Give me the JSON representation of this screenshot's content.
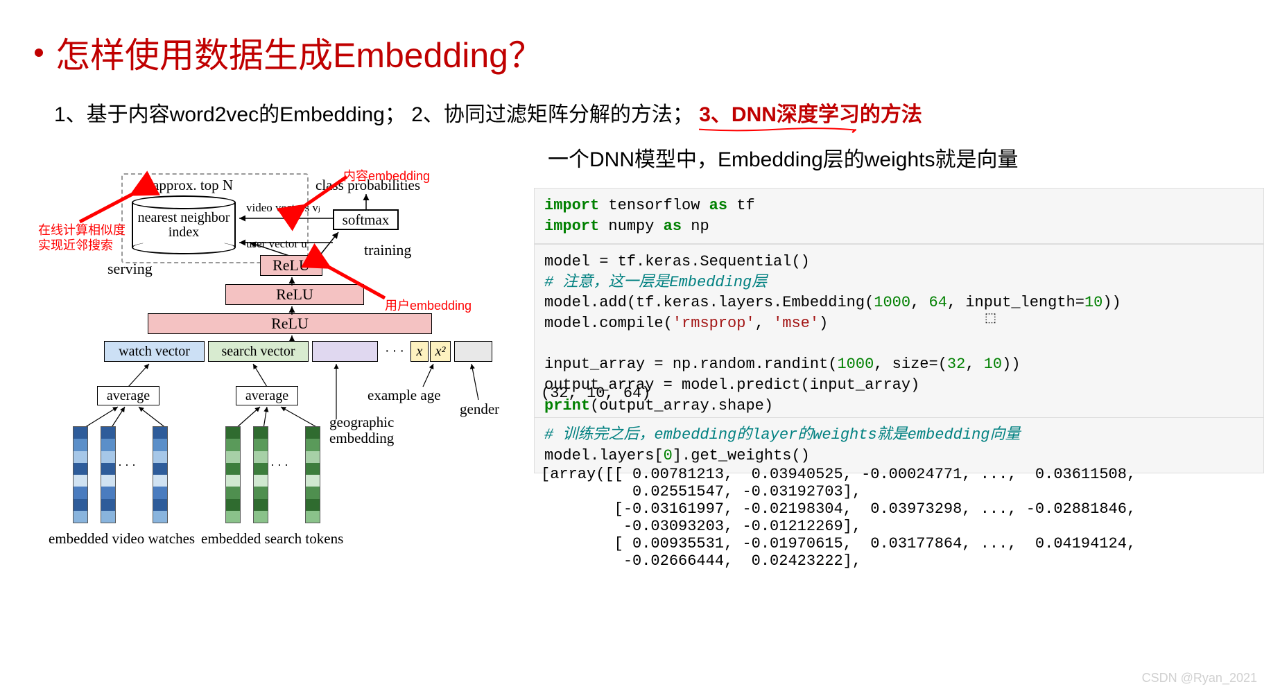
{
  "title": "怎样使用数据生成Embedding？",
  "subtitle_parts": {
    "p1": "1、基于内容word2vec的Embedding；",
    "p2": "2、协同过滤矩阵分解的方法；",
    "p3": "3、DNN深度学习的方法"
  },
  "dnn_caption": "一个DNN模型中，Embedding层的weights就是向量",
  "diagram": {
    "approx_top_n": "approx. top N",
    "nearest_neighbor": "nearest neighbor",
    "index": "index",
    "serving": "serving",
    "video_vectors": "video vectors vⱼ",
    "user_vector": "user vector u",
    "softmax": "softmax",
    "class_prob": "class probabilities",
    "training": "training",
    "relu": "ReLU",
    "watch_vector": "watch vector",
    "search_vector": "search vector",
    "x": "x",
    "x2": "x²",
    "ellipsis": "···",
    "average": "average",
    "example_age": "example age",
    "gender": "gender",
    "geographic": "geographic",
    "embedding": "embedding",
    "embedded_video": "embedded video watches",
    "embedded_search": "embedded search tokens",
    "annot_content": "内容embedding",
    "annot_user": "用户embedding",
    "annot_nn": "在线计算相似度\n实现近邻搜索",
    "blue_shades": [
      "#2e5c9a",
      "#5b8fc9",
      "#a6c7e8",
      "#2e5c9a",
      "#d0e2f2",
      "#4a7cbf",
      "#2e5c9a",
      "#89b4dd"
    ],
    "green_shades": [
      "#2f6b2f",
      "#5a9a5a",
      "#a7d0a7",
      "#3c7d3c",
      "#d0e8d0",
      "#4f8f4f",
      "#2f6b2f",
      "#8ac28a"
    ]
  },
  "code": {
    "block1_l1a": "import",
    "block1_l1b": " tensorflow ",
    "block1_l1c": "as",
    "block1_l1d": " tf",
    "block1_l2a": "import",
    "block1_l2b": " numpy ",
    "block1_l2c": "as",
    "block1_l2d": " np",
    "block2_l1": "model = tf.keras.Sequential()",
    "block2_l2": "# 注意，这一层是Embedding层",
    "block2_l3a": "model.add(tf.keras.layers.Embedding(",
    "block2_l3b": "1000",
    "block2_l3c": ", ",
    "block2_l3d": "64",
    "block2_l3e": ", input_length=",
    "block2_l3f": "10",
    "block2_l3g": "))",
    "block2_l4a": "model.compile(",
    "block2_l4b": "'rmsprop'",
    "block2_l4c": ", ",
    "block2_l4d": "'mse'",
    "block2_l4e": ")",
    "block2_l6a": "input_array = np.random.randint(",
    "block2_l6b": "1000",
    "block2_l6c": ", size=(",
    "block2_l6d": "32",
    "block2_l6e": ", ",
    "block2_l6f": "10",
    "block2_l6g": "))",
    "block2_l7": "output_array = model.predict(input_array)",
    "block2_l8a": "print",
    "block2_l8b": "(output_array.shape)",
    "out1": "(32, 10, 64)",
    "block3_l1": "# 训练完之后，embedding的layer的weights就是embedding向量",
    "block3_l2a": "model.layers[",
    "block3_l2b": "0",
    "block3_l2c": "].get_weights()",
    "out2": "[array([[ 0.00781213,  0.03940525, -0.00024771, ...,  0.03611508,\n          0.02551547, -0.03192703],\n        [-0.03161997, -0.02198304,  0.03973298, ..., -0.02881846,\n         -0.03093203, -0.01212269],\n        [ 0.00935531, -0.01970615,  0.03177864, ...,  0.04194124,\n         -0.02666444,  0.02423222],"
  },
  "watermark": "CSDN @Ryan_2021",
  "colors": {
    "title": "#c00000",
    "red_annot": "#ff0000",
    "relu_bg": "#f4c2c2",
    "watch_bg": "#cce0f5",
    "search_bg": "#d8ebd0",
    "purple_bg": "#e0d8f0",
    "yellow_bg": "#fdf2c0",
    "code_bg": "#f6f6f6"
  }
}
